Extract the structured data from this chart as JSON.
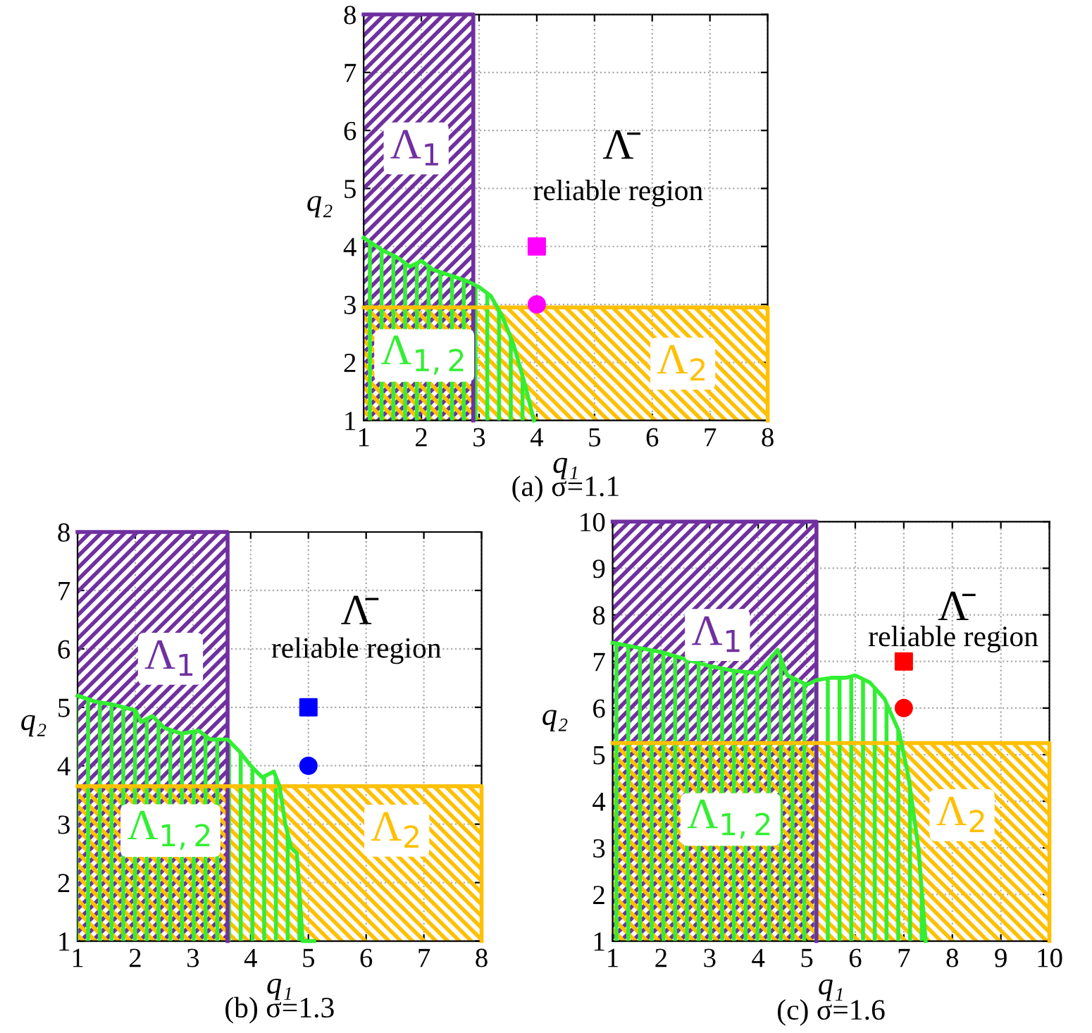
{
  "chart_data": [
    {
      "type": "area",
      "title": "(a) σ=1.1",
      "xlabel": "q₁",
      "ylabel": "q₂",
      "xlim": [
        1,
        8
      ],
      "ylim": [
        1,
        8
      ],
      "xticks": [
        1,
        2,
        3,
        4,
        5,
        6,
        7,
        8
      ],
      "yticks": [
        1,
        2,
        3,
        4,
        5,
        6,
        7,
        8
      ],
      "grid": true,
      "series": [
        {
          "name": "Λ$_{1}$",
          "color": "#7030a0",
          "x": [
            1,
            2.9
          ],
          "values": [
            8,
            8
          ]
        },
        {
          "name": "Λ$_{2}$",
          "color": "#ffc000",
          "x": [
            1,
            8
          ],
          "values": [
            2.95,
            2.95
          ]
        },
        {
          "name": "Λ$_{1,2}$",
          "color": "#33ee33",
          "x": [
            1,
            1.3,
            1.6,
            1.8,
            2.0,
            2.2,
            2.5,
            2.8,
            3.0,
            3.2,
            3.4,
            3.6,
            3.8,
            3.95
          ],
          "values": [
            4.15,
            3.95,
            3.8,
            3.65,
            3.75,
            3.6,
            3.5,
            3.4,
            3.3,
            3.15,
            2.8,
            2.3,
            1.6,
            1.0
          ]
        },
        {
          "type": "scatter",
          "marker": "square",
          "color": "#ff00ff",
          "x": [
            4
          ],
          "values": [
            4
          ]
        },
        {
          "type": "scatter",
          "marker": "circle",
          "color": "#ff00ff",
          "x": [
            4
          ],
          "values": [
            3
          ]
        }
      ],
      "annotations": [
        "Λ̄",
        "reliable region"
      ]
    },
    {
      "type": "area",
      "title": "(b) σ=1.3",
      "xlabel": "q₁",
      "ylabel": "q₂",
      "xlim": [
        1,
        8
      ],
      "ylim": [
        1,
        8
      ],
      "xticks": [
        1,
        2,
        3,
        4,
        5,
        6,
        7,
        8
      ],
      "yticks": [
        1,
        2,
        3,
        4,
        5,
        6,
        7,
        8
      ],
      "grid": true,
      "series": [
        {
          "name": "Λ$_{1}$",
          "color": "#7030a0",
          "x": [
            1,
            3.6
          ],
          "values": [
            8,
            8
          ]
        },
        {
          "name": "Λ$_{2}$",
          "color": "#ffc000",
          "x": [
            1,
            8
          ],
          "values": [
            3.65,
            3.65
          ]
        },
        {
          "name": "Λ$_{1,2}$",
          "color": "#33ee33",
          "x": [
            1,
            1.3,
            1.6,
            2.0,
            2.1,
            2.3,
            2.5,
            2.8,
            3.1,
            3.3,
            3.6,
            3.8,
            4.0,
            4.2,
            4.4,
            4.5,
            4.6,
            4.7,
            4.8,
            4.9,
            5.1
          ],
          "values": [
            5.2,
            5.1,
            5.05,
            4.95,
            4.75,
            4.85,
            4.65,
            4.55,
            4.6,
            4.45,
            4.45,
            4.25,
            4.0,
            3.8,
            3.9,
            3.65,
            3.0,
            2.6,
            2.5,
            1.0,
            1.0
          ]
        },
        {
          "type": "scatter",
          "marker": "square",
          "color": "#0000ff",
          "x": [
            5
          ],
          "values": [
            5
          ]
        },
        {
          "type": "scatter",
          "marker": "circle",
          "color": "#0000ff",
          "x": [
            5
          ],
          "values": [
            4
          ]
        }
      ],
      "annotations": [
        "Λ̄",
        "reliable region"
      ]
    },
    {
      "type": "area",
      "title": "(c) σ=1.6",
      "xlabel": "q₁",
      "ylabel": "q₂",
      "xlim": [
        1,
        10
      ],
      "ylim": [
        1,
        10
      ],
      "xticks": [
        1,
        2,
        3,
        4,
        5,
        6,
        7,
        8,
        9,
        10
      ],
      "yticks": [
        1,
        2,
        3,
        4,
        5,
        6,
        7,
        8,
        9,
        10
      ],
      "grid": true,
      "series": [
        {
          "name": "Λ$_{1}$",
          "color": "#7030a0",
          "x": [
            1,
            5.2
          ],
          "values": [
            10,
            10
          ]
        },
        {
          "name": "Λ$_{2}$",
          "color": "#ffc000",
          "x": [
            1,
            10
          ],
          "values": [
            5.25,
            5.25
          ]
        },
        {
          "name": "Λ$_{1,2}$",
          "color": "#33ee33",
          "x": [
            1,
            1.5,
            2,
            2.5,
            3,
            3.5,
            4,
            4.4,
            4.6,
            5,
            5.2,
            5.5,
            5.8,
            6,
            6.3,
            6.6,
            6.9,
            7.1,
            7.3,
            7.45
          ],
          "values": [
            7.4,
            7.3,
            7.2,
            7.05,
            6.9,
            6.8,
            6.75,
            7.25,
            6.7,
            6.5,
            6.6,
            6.65,
            6.65,
            6.7,
            6.55,
            6.2,
            5.5,
            4.5,
            3.0,
            1.0
          ]
        },
        {
          "type": "scatter",
          "marker": "square",
          "color": "#ff0000",
          "x": [
            7
          ],
          "values": [
            7
          ]
        },
        {
          "type": "scatter",
          "marker": "circle",
          "color": "#ff0000",
          "x": [
            7
          ],
          "values": [
            6
          ]
        }
      ],
      "annotations": [
        "Λ̄",
        "reliable region"
      ]
    }
  ]
}
